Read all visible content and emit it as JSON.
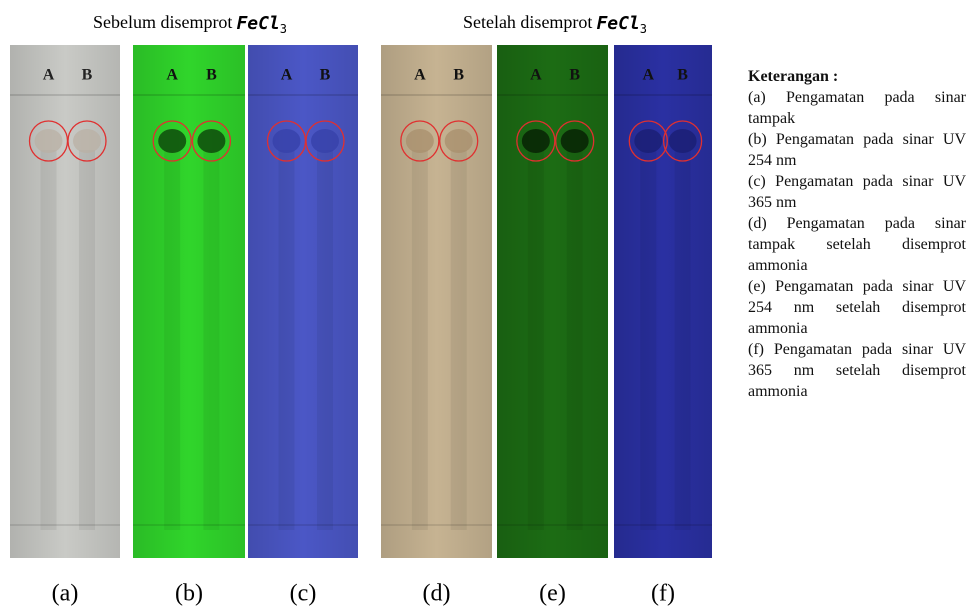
{
  "headers": [
    {
      "text": "Sebelum disemprot",
      "formula": "FeCl",
      "subscript": "3"
    },
    {
      "text": "Setelah disemprot",
      "formula": "FeCl",
      "subscript": "3"
    }
  ],
  "plates": [
    {
      "lanes": [
        "A",
        "B"
      ],
      "caption": "(a)"
    },
    {
      "lanes": [
        "A",
        "B"
      ],
      "caption": "(b)"
    },
    {
      "lanes": [
        "A",
        "B"
      ],
      "caption": "(c)"
    },
    {
      "lanes": [
        "A",
        "B"
      ],
      "caption": "(d)"
    },
    {
      "lanes": [
        "A",
        "B"
      ],
      "caption": "(e)"
    },
    {
      "lanes": [
        "A",
        "B"
      ],
      "caption": "(f)"
    }
  ],
  "legend": {
    "title": "Keterangan :",
    "items": [
      "(a) Pengamatan pada sinar tampak",
      "(b) Pengamatan pada sinar UV 254 nm",
      "(c) Pengamatan pada sinar UV 365 nm",
      "(d) Pengamatan pada sinar tampak setelah disemprot ammonia",
      "(e) Pengamatan pada sinar UV 254 nm setelah disemprot ammonia",
      "(f) Pengamatan pada sinar UV 365 nm setelah disemprot ammonia"
    ]
  }
}
